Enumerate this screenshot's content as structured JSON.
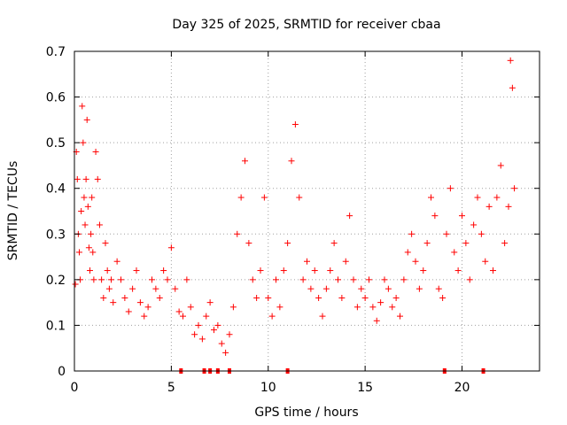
{
  "chart_data": {
    "type": "scatter",
    "title": "Day 325 of 2025, SRMTID for receiver cbaa",
    "xlabel": "GPS time / hours",
    "ylabel": "SRMTID / TECUs",
    "xlim": [
      0,
      24
    ],
    "ylim": [
      0,
      0.7
    ],
    "xticks": [
      0,
      5,
      10,
      15,
      20
    ],
    "xtick_labels": [
      "0",
      "5",
      "10",
      "15",
      "20"
    ],
    "yticks": [
      0,
      0.1,
      0.2,
      0.3,
      0.4,
      0.5,
      0.6,
      0.7
    ],
    "ytick_labels": [
      "0",
      "0.1",
      "0.2",
      "0.3",
      "0.4",
      "0.5",
      "0.6",
      "0.7"
    ],
    "grid": true,
    "marker": "+",
    "color": "#ff0000",
    "data_gaps_hours": [
      5.5,
      6.7,
      7.0,
      7.4,
      8.0,
      11.0,
      19.1,
      21.1
    ],
    "series": [
      {
        "name": "SRMTID",
        "x": [
          0.05,
          0.1,
          0.15,
          0.2,
          0.25,
          0.3,
          0.35,
          0.4,
          0.45,
          0.5,
          0.55,
          0.6,
          0.65,
          0.7,
          0.75,
          0.8,
          0.85,
          0.9,
          0.95,
          1.0,
          1.1,
          1.2,
          1.3,
          1.4,
          1.5,
          1.6,
          1.7,
          1.8,
          1.9,
          2.0,
          2.2,
          2.4,
          2.6,
          2.8,
          3.0,
          3.2,
          3.4,
          3.6,
          3.8,
          4.0,
          4.2,
          4.4,
          4.6,
          4.8,
          5.0,
          5.2,
          5.4,
          5.6,
          5.8,
          6.0,
          6.2,
          6.4,
          6.6,
          6.8,
          7.0,
          7.2,
          7.4,
          7.6,
          7.8,
          8.0,
          8.2,
          8.4,
          8.6,
          8.8,
          9.0,
          9.2,
          9.4,
          9.6,
          9.8,
          10.0,
          10.2,
          10.4,
          10.6,
          10.8,
          11.0,
          11.2,
          11.4,
          11.6,
          11.8,
          12.0,
          12.2,
          12.4,
          12.6,
          12.8,
          13.0,
          13.2,
          13.4,
          13.6,
          13.8,
          14.0,
          14.2,
          14.4,
          14.6,
          14.8,
          15.0,
          15.2,
          15.4,
          15.6,
          15.8,
          16.0,
          16.2,
          16.4,
          16.6,
          16.8,
          17.0,
          17.2,
          17.4,
          17.6,
          17.8,
          18.0,
          18.2,
          18.4,
          18.6,
          18.8,
          19.0,
          19.2,
          19.4,
          19.6,
          19.8,
          20.0,
          20.2,
          20.4,
          20.6,
          20.8,
          21.0,
          21.2,
          21.4,
          21.6,
          21.8,
          22.0,
          22.2,
          22.4,
          22.5,
          22.6,
          22.7
        ],
        "y": [
          0.19,
          0.48,
          0.42,
          0.3,
          0.26,
          0.2,
          0.35,
          0.58,
          0.5,
          0.38,
          0.32,
          0.42,
          0.55,
          0.36,
          0.27,
          0.22,
          0.3,
          0.38,
          0.26,
          0.2,
          0.48,
          0.42,
          0.32,
          0.2,
          0.16,
          0.28,
          0.22,
          0.18,
          0.2,
          0.15,
          0.24,
          0.2,
          0.16,
          0.13,
          0.18,
          0.22,
          0.15,
          0.12,
          0.14,
          0.2,
          0.18,
          0.16,
          0.22,
          0.2,
          0.27,
          0.18,
          0.13,
          0.12,
          0.2,
          0.14,
          0.08,
          0.1,
          0.07,
          0.12,
          0.15,
          0.09,
          0.1,
          0.06,
          0.04,
          0.08,
          0.14,
          0.3,
          0.38,
          0.46,
          0.28,
          0.2,
          0.16,
          0.22,
          0.38,
          0.16,
          0.12,
          0.2,
          0.14,
          0.22,
          0.28,
          0.46,
          0.54,
          0.38,
          0.2,
          0.24,
          0.18,
          0.22,
          0.16,
          0.12,
          0.18,
          0.22,
          0.28,
          0.2,
          0.16,
          0.24,
          0.34,
          0.2,
          0.14,
          0.18,
          0.16,
          0.2,
          0.14,
          0.11,
          0.15,
          0.2,
          0.18,
          0.14,
          0.16,
          0.12,
          0.2,
          0.26,
          0.3,
          0.24,
          0.18,
          0.22,
          0.28,
          0.38,
          0.34,
          0.18,
          0.16,
          0.3,
          0.4,
          0.26,
          0.22,
          0.34,
          0.28,
          0.2,
          0.32,
          0.38,
          0.3,
          0.24,
          0.36,
          0.22,
          0.38,
          0.45,
          0.28,
          0.36,
          0.68,
          0.62,
          0.4
        ]
      }
    ]
  }
}
